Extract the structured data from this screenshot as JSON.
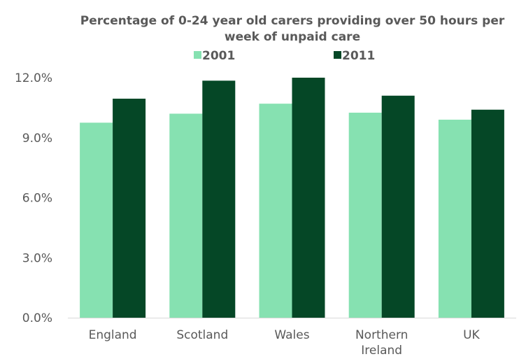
{
  "chart_data": {
    "type": "bar",
    "title_lines": [
      "Percentage of 0-24 year old carers providing over 50 hours per",
      "week of unpaid care"
    ],
    "categories": [
      [
        "England"
      ],
      [
        "Scotland"
      ],
      [
        "Wales"
      ],
      [
        "Northern",
        "Ireland"
      ],
      [
        "UK"
      ]
    ],
    "series": [
      {
        "name": "2001",
        "color": "#86e1b1",
        "values": [
          9.75,
          10.2,
          10.7,
          10.25,
          9.9
        ]
      },
      {
        "name": "2011",
        "color": "#054726",
        "values": [
          10.95,
          11.85,
          12.0,
          11.1,
          10.4
        ]
      }
    ],
    "yticks": [
      "0.0%",
      "3.0%",
      "6.0%",
      "9.0%",
      "12.0%"
    ],
    "ylim": [
      0,
      12
    ],
    "ytick_values": [
      0,
      3,
      6,
      9,
      12
    ],
    "grid": false,
    "legend_position": "top-center"
  }
}
